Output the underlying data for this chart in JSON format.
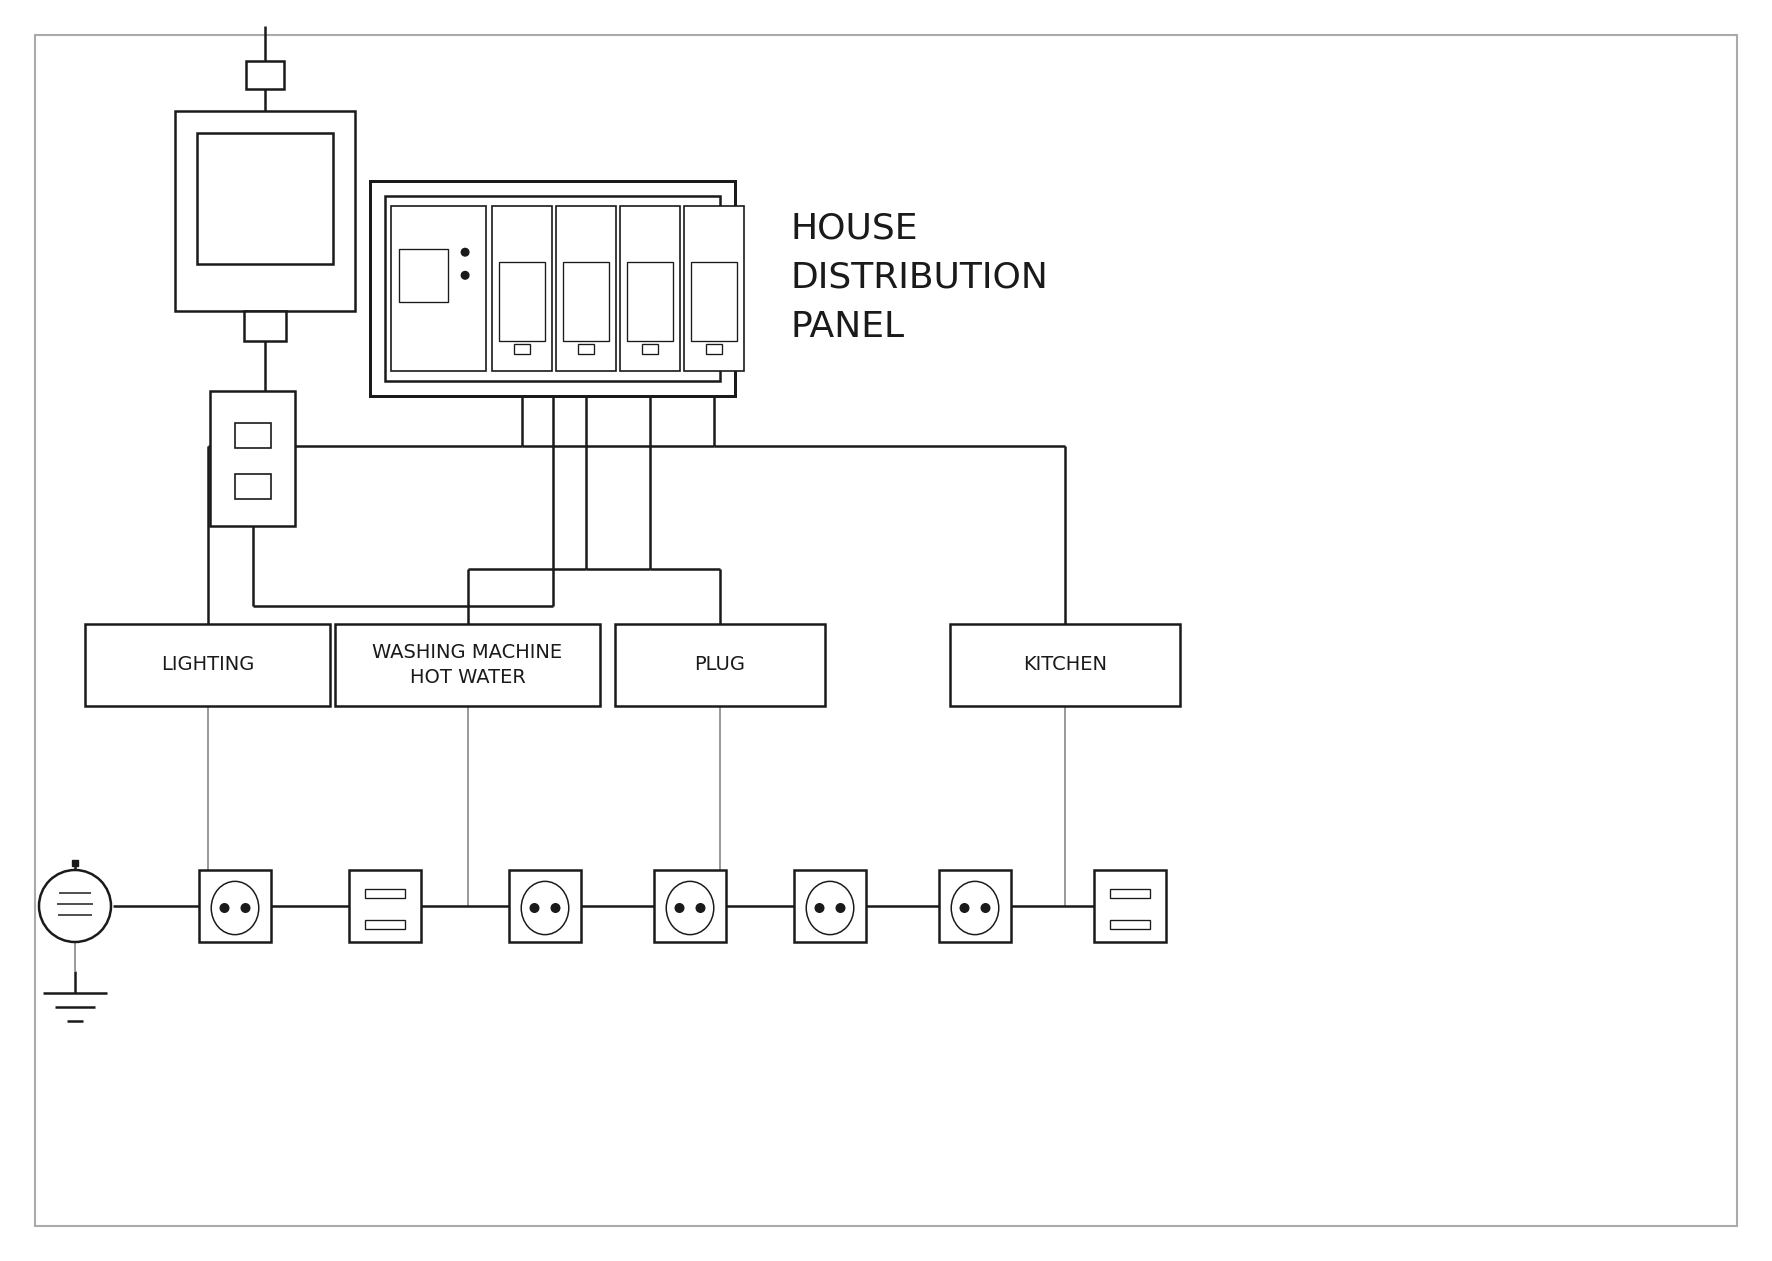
{
  "bg_color": "#ffffff",
  "line_color": "#1a1a1a",
  "lw": 1.8,
  "lw_thin": 1.2,
  "panel_label": "HOUSE\nDISTRIBUTION\nPANEL",
  "circuit_labels": [
    "LIGHTING",
    "WASHING MACHINE\nHOT WATER",
    "PLUG",
    "KITCHEN"
  ],
  "border_color": "#888888",
  "gray_wire": "#888888",
  "font_size_label": 14,
  "font_size_panel": 26
}
